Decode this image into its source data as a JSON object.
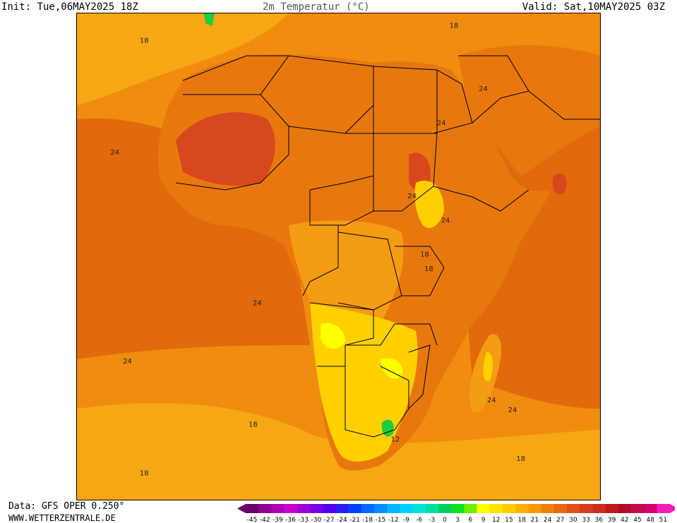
{
  "header": {
    "init": "Init: Tue,06MAY2025 18Z",
    "title": "2m Temperatur (°C)",
    "valid": "Valid: Sat,10MAY2025 03Z"
  },
  "footer": {
    "data_source": "Data: GFS OPER 0.250°",
    "website": "WWW.WETTERZENTRALE.DE"
  },
  "colors": {
    "ocean_warm": "#e06a0c",
    "ocean_mid": "#f08c10",
    "ocean_cool": "#f6a814",
    "sahara_hot": "#d8481e",
    "land_hot": "#e8780e",
    "land_mid": "#f49c12",
    "highland": "#ffd000",
    "cool_spot": "#ffff00",
    "cold_spot": "#20cc40",
    "border": "#000000"
  },
  "map_labels": [
    {
      "text": "18",
      "lon": -35,
      "lat": 34
    },
    {
      "text": "18",
      "lon": 39,
      "lat": 37
    },
    {
      "text": "24",
      "lon": 46,
      "lat": 24
    },
    {
      "text": "24",
      "lon": 36,
      "lat": 17
    },
    {
      "text": "24",
      "lon": -42,
      "lat": 11
    },
    {
      "text": "24",
      "lon": 29,
      "lat": 2
    },
    {
      "text": "24",
      "lon": 37,
      "lat": -3
    },
    {
      "text": "18",
      "lon": 32,
      "lat": -10
    },
    {
      "text": "18",
      "lon": 33,
      "lat": -13
    },
    {
      "text": "24",
      "lon": -8,
      "lat": -20
    },
    {
      "text": "24",
      "lon": -39,
      "lat": -32
    },
    {
      "text": "24",
      "lon": 48,
      "lat": -40
    },
    {
      "text": "24",
      "lon": 53,
      "lat": -42
    },
    {
      "text": "18",
      "lon": -9,
      "lat": -45
    },
    {
      "text": "12",
      "lon": 25,
      "lat": -48
    },
    {
      "text": "18",
      "lon": 55,
      "lat": -52
    },
    {
      "text": "18",
      "lon": -35,
      "lat": -55
    }
  ],
  "colorbar": {
    "ticks": [
      "-45",
      "-42",
      "-39",
      "-36",
      "-33",
      "-30",
      "-27",
      "-24",
      "-21",
      "-18",
      "-15",
      "-12",
      "-9",
      "-6",
      "-3",
      "0",
      "3",
      "6",
      "9",
      "12",
      "15",
      "18",
      "21",
      "24",
      "27",
      "30",
      "33",
      "36",
      "39",
      "42",
      "45",
      "48",
      "51"
    ],
    "colors": [
      "#6a006a",
      "#900090",
      "#b000b0",
      "#cc00cc",
      "#a000d8",
      "#7800e6",
      "#5000f0",
      "#2a1ef2",
      "#0040f8",
      "#0068fc",
      "#0090ff",
      "#00b4ff",
      "#00d0ff",
      "#00e4d8",
      "#00e0a0",
      "#00d060",
      "#10e020",
      "#70f000",
      "#ffff00",
      "#ffe400",
      "#ffcc00",
      "#ffb000",
      "#f89800",
      "#f08000",
      "#e86810",
      "#e05018",
      "#d83c20",
      "#cc2c20",
      "#c01818",
      "#b00c28",
      "#c00c48",
      "#d80070",
      "#f01cb8"
    ]
  }
}
